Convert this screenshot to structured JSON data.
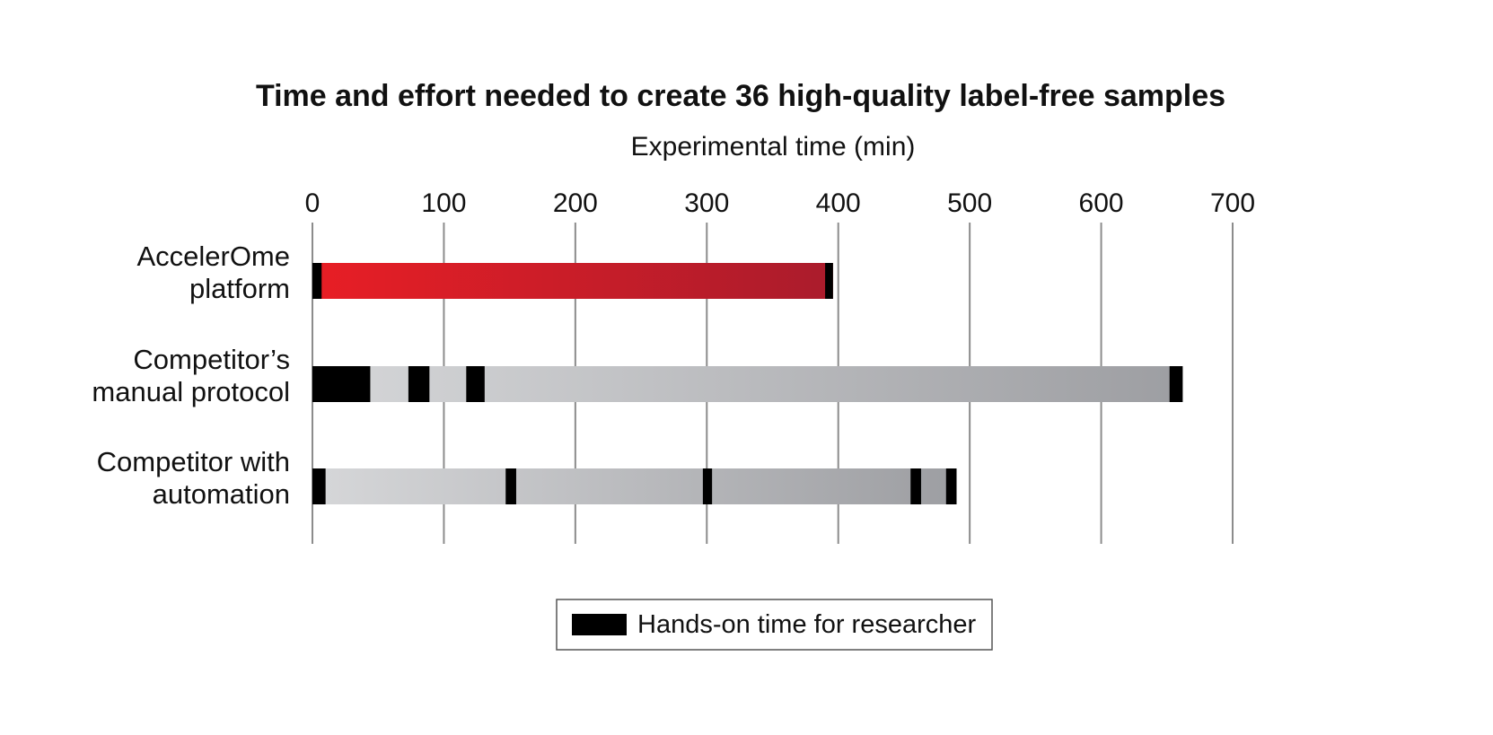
{
  "chart_data": {
    "type": "bar",
    "orientation": "horizontal",
    "stacked": true,
    "title": "Time and effort needed to create 36 high-quality label-free samples",
    "xlabel": "Experimental time (min)",
    "ylabel": "",
    "xlim": [
      0,
      700
    ],
    "x_ticks": [
      "0",
      "100",
      "200",
      "300",
      "400",
      "500",
      "600",
      "700"
    ],
    "x_tick_values": [
      0,
      100,
      200,
      300,
      400,
      500,
      600,
      700
    ],
    "x_axis_position": "top",
    "grid": "vertical",
    "categories": [
      [
        "AccelerOme",
        "platform"
      ],
      [
        "Competitor’s",
        "manual protocol"
      ],
      [
        "Competitor with",
        "automation"
      ]
    ],
    "bars": [
      {
        "category_index": 0,
        "fill": "red-gradient",
        "segments": [
          {
            "start": 0,
            "end": 7,
            "kind": "hands-on"
          },
          {
            "start": 7,
            "end": 390,
            "kind": "instrument"
          },
          {
            "start": 390,
            "end": 396,
            "kind": "hands-on"
          }
        ]
      },
      {
        "category_index": 1,
        "fill": "gray-gradient",
        "segments": [
          {
            "start": 0,
            "end": 44,
            "kind": "hands-on"
          },
          {
            "start": 44,
            "end": 73,
            "kind": "instrument"
          },
          {
            "start": 73,
            "end": 89,
            "kind": "hands-on"
          },
          {
            "start": 89,
            "end": 117,
            "kind": "instrument"
          },
          {
            "start": 117,
            "end": 131,
            "kind": "hands-on"
          },
          {
            "start": 131,
            "end": 652,
            "kind": "instrument"
          },
          {
            "start": 652,
            "end": 662,
            "kind": "hands-on"
          }
        ]
      },
      {
        "category_index": 2,
        "fill": "gray-gradient",
        "segments": [
          {
            "start": 0,
            "end": 10,
            "kind": "hands-on"
          },
          {
            "start": 10,
            "end": 147,
            "kind": "instrument"
          },
          {
            "start": 147,
            "end": 155,
            "kind": "hands-on"
          },
          {
            "start": 155,
            "end": 297,
            "kind": "instrument"
          },
          {
            "start": 297,
            "end": 304,
            "kind": "hands-on"
          },
          {
            "start": 304,
            "end": 455,
            "kind": "instrument"
          },
          {
            "start": 455,
            "end": 463,
            "kind": "hands-on"
          },
          {
            "start": 463,
            "end": 482,
            "kind": "instrument"
          },
          {
            "start": 482,
            "end": 490,
            "kind": "hands-on"
          }
        ]
      }
    ],
    "legend": {
      "placement": "bottom-center",
      "entries": [
        {
          "label": "Hands-on time for researcher",
          "color": "#000000"
        }
      ]
    },
    "colors": {
      "hands_on": "#000000",
      "red_start": "#e81e25",
      "red_end": "#aa1c2c",
      "gray_start": "#d6d7d9",
      "gray_end": "#9d9ea2",
      "gridline": "#8c8c8c",
      "text": "#111111"
    }
  }
}
